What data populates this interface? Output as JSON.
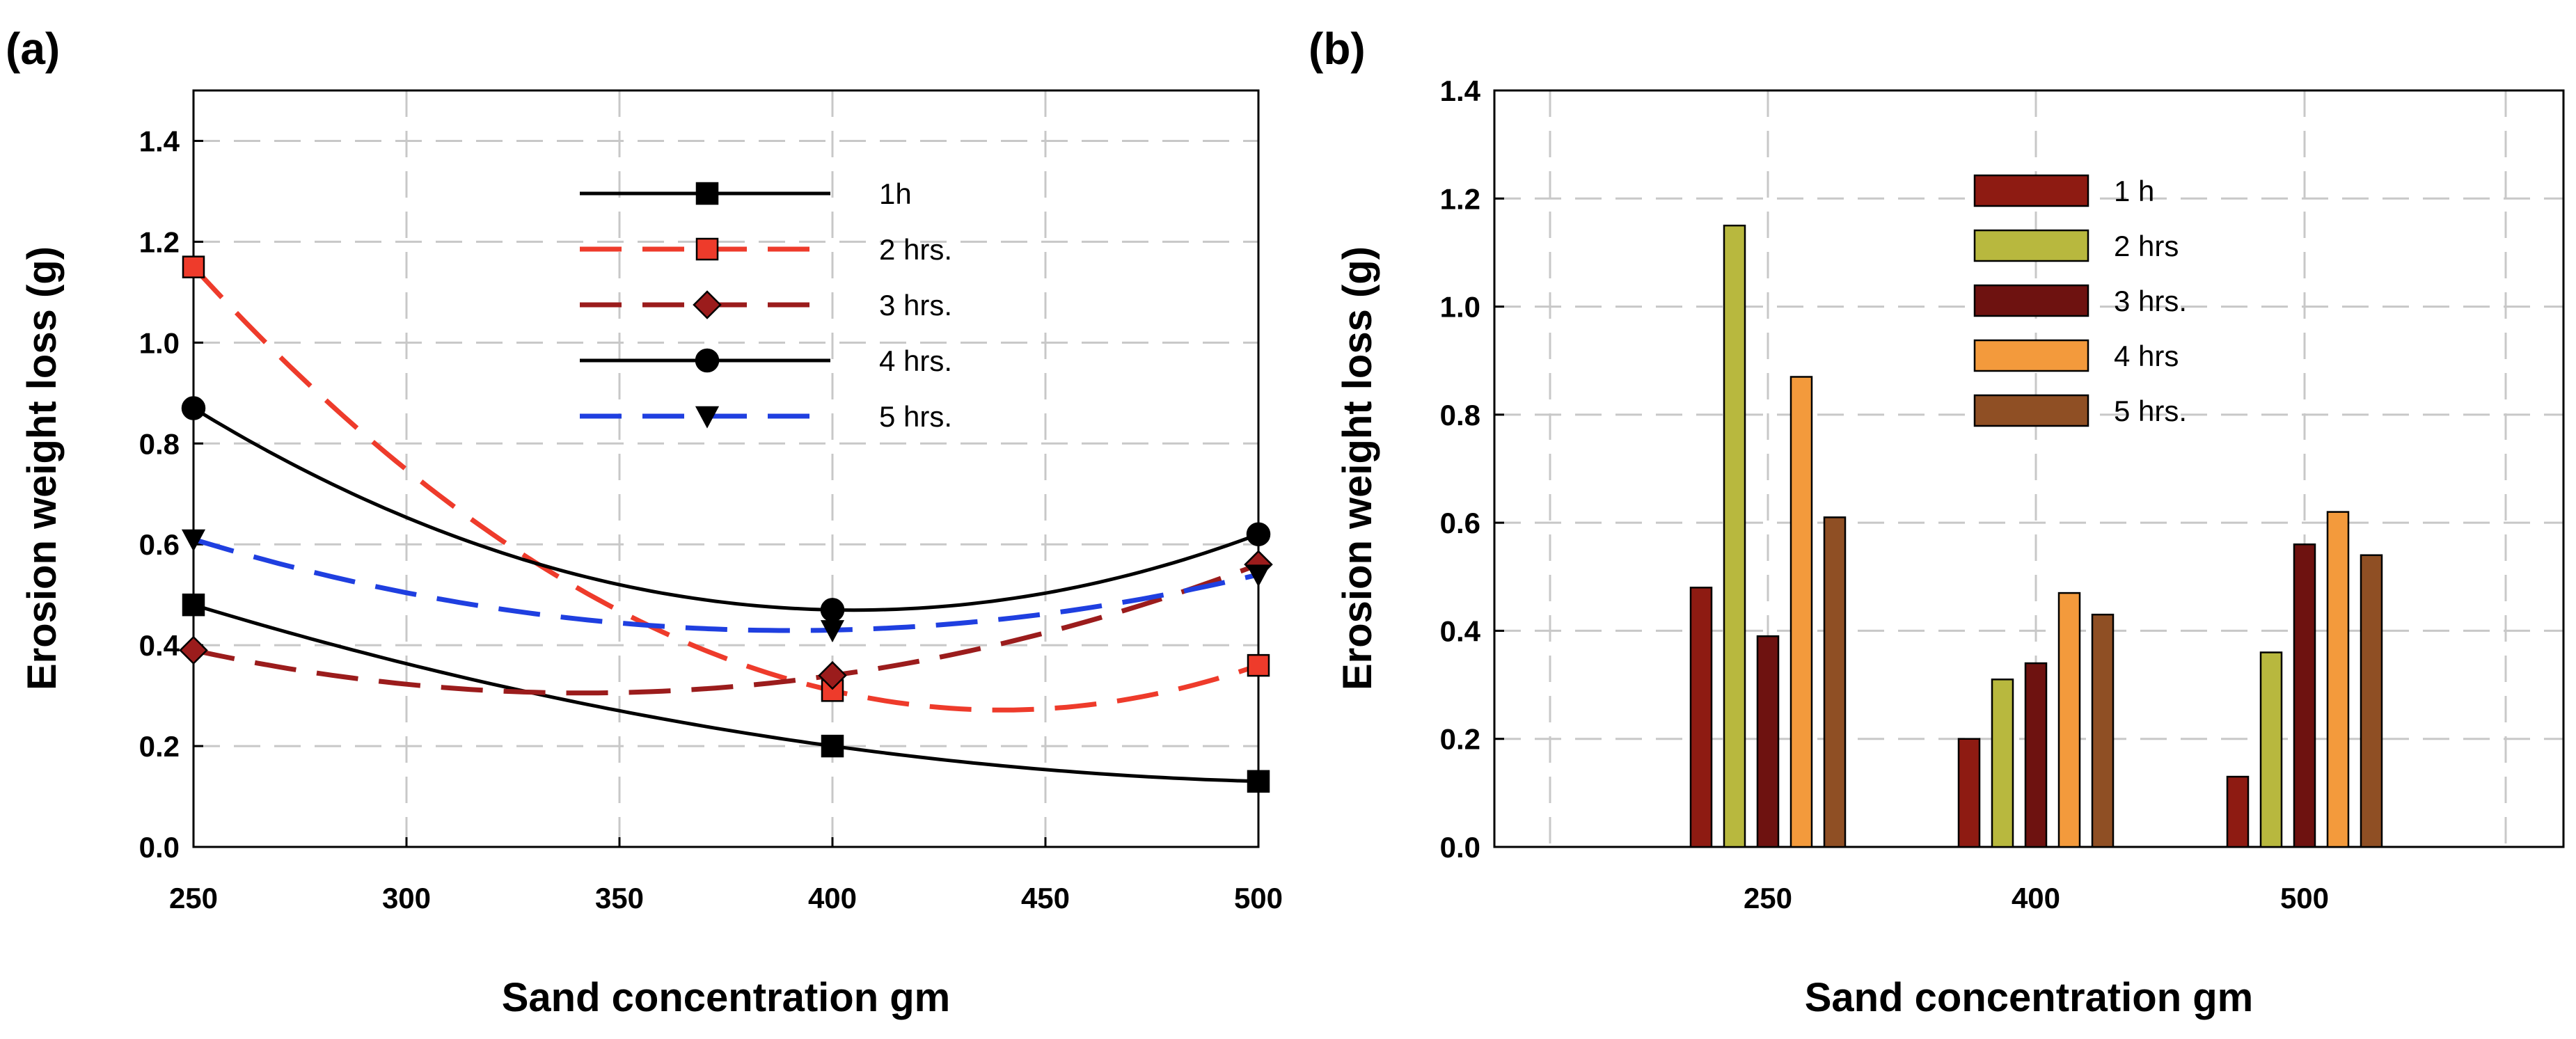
{
  "chart_data": [
    {
      "type": "line",
      "panel": "(a)",
      "xlabel": "Sand concentration gm",
      "ylabel": "Erosion weight loss (g)",
      "xlim": [
        250,
        500
      ],
      "ylim": [
        0.0,
        1.5
      ],
      "xticks": [
        250,
        300,
        350,
        400,
        450,
        500
      ],
      "yticks": [
        "0.0",
        "0.2",
        "0.4",
        "0.6",
        "0.8",
        "1.0",
        "1.2",
        "1.4"
      ],
      "grid": true,
      "legend_position": "top-right",
      "x": [
        250,
        400,
        500
      ],
      "series": [
        {
          "name": "1h",
          "values": [
            0.48,
            0.2,
            0.13
          ],
          "color": "#000000",
          "dash": "solid",
          "marker": "square",
          "marker_fill": "#000000"
        },
        {
          "name": "2 hrs.",
          "values": [
            1.15,
            0.31,
            0.36
          ],
          "color": "#ee3b2b",
          "dash": "dashed",
          "marker": "square",
          "marker_fill": "#ee3b2b"
        },
        {
          "name": "3 hrs.",
          "values": [
            0.39,
            0.34,
            0.56
          ],
          "color": "#9b1c1c",
          "dash": "dashed",
          "marker": "diamond",
          "marker_fill": "#9b1c1c"
        },
        {
          "name": "4 hrs.",
          "values": [
            0.87,
            0.47,
            0.62
          ],
          "color": "#000000",
          "dash": "solid",
          "marker": "circle",
          "marker_fill": "#000000"
        },
        {
          "name": "5 hrs.",
          "values": [
            0.61,
            0.43,
            0.54
          ],
          "color": "#1f3fe0",
          "dash": "dashed",
          "marker": "triangle-down",
          "marker_fill": "#000000"
        }
      ]
    },
    {
      "type": "bar",
      "panel": "(b)",
      "xlabel": "Sand concentration gm",
      "ylabel": "Erosion weight loss (g)",
      "ylim": [
        0.0,
        1.4
      ],
      "yticks": [
        "0.0",
        "0.2",
        "0.4",
        "0.6",
        "0.8",
        "1.0",
        "1.2",
        "1.4"
      ],
      "grid": true,
      "legend_position": "top-center",
      "categories": [
        "250",
        "400",
        "500"
      ],
      "series": [
        {
          "name": "1 h",
          "values": [
            0.48,
            0.2,
            0.13
          ],
          "color": "#8e1b12"
        },
        {
          "name": "2 hrs",
          "values": [
            1.15,
            0.31,
            0.36
          ],
          "color": "#b8b83e"
        },
        {
          "name": "3 hrs.",
          "values": [
            0.39,
            0.34,
            0.56
          ],
          "color": "#6e1210"
        },
        {
          "name": "4 hrs",
          "values": [
            0.87,
            0.47,
            0.62
          ],
          "color": "#f39a3c"
        },
        {
          "name": "5 hrs.",
          "values": [
            0.61,
            0.43,
            0.54
          ],
          "color": "#8f4f24"
        }
      ]
    }
  ]
}
